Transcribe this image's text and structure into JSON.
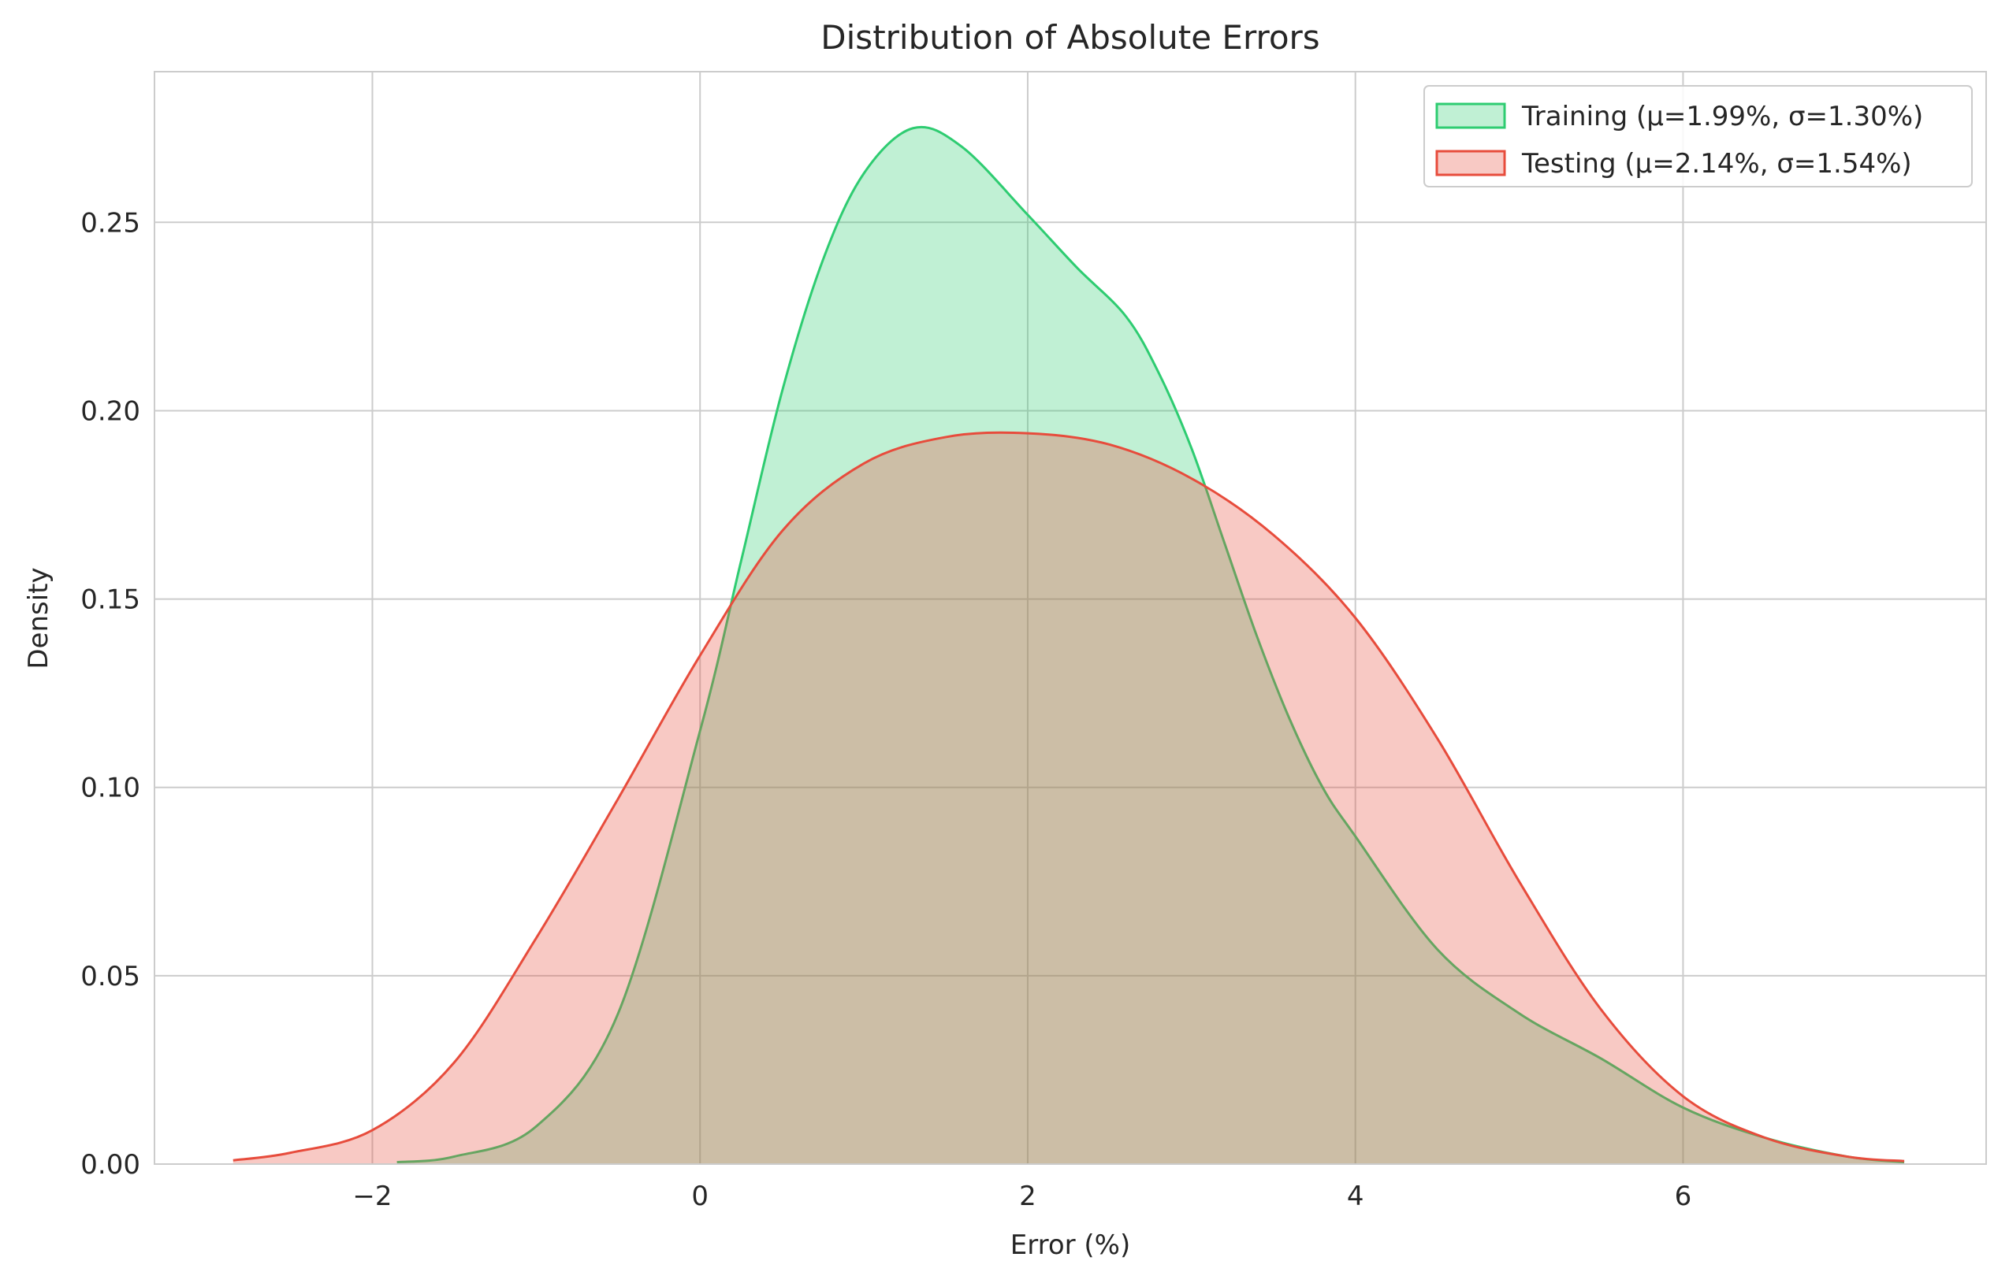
{
  "chart_data": {
    "type": "area",
    "title": "Distribution of Absolute Errors",
    "xlabel": "Error (%)",
    "ylabel": "Density",
    "xlim": [
      -3.33,
      7.85
    ],
    "ylim": [
      0,
      0.29
    ],
    "xticks": [
      -2,
      0,
      2,
      4,
      6
    ],
    "xtick_labels": [
      "−2",
      "0",
      "2",
      "4",
      "6"
    ],
    "yticks": [
      0,
      0.05,
      0.1,
      0.15,
      0.2,
      0.25
    ],
    "ytick_labels": [
      "0.00",
      "0.05",
      "0.10",
      "0.15",
      "0.20",
      "0.25"
    ],
    "grid": true,
    "legend_position": "top-right",
    "series": [
      {
        "name": "Training (μ=1.99%, σ=1.30%)",
        "line_color": "#2ecc71",
        "fill_color": "#2ecc71",
        "fill_opacity": 0.3,
        "x": [
          -1.85,
          -1.5,
          -1.0,
          -0.5,
          0.0,
          0.25,
          0.5,
          0.75,
          1.0,
          1.3,
          1.6,
          2.0,
          2.3,
          2.6,
          2.8,
          3.0,
          3.2,
          3.4,
          3.6,
          3.8,
          4.0,
          4.5,
          5.0,
          5.5,
          6.0,
          6.5,
          7.0,
          7.35
        ],
        "y": [
          0.0005,
          0.002,
          0.01,
          0.04,
          0.115,
          0.16,
          0.205,
          0.24,
          0.263,
          0.275,
          0.27,
          0.252,
          0.238,
          0.225,
          0.21,
          0.19,
          0.165,
          0.14,
          0.118,
          0.1,
          0.087,
          0.057,
          0.04,
          0.028,
          0.015,
          0.007,
          0.002,
          0.0005
        ]
      },
      {
        "name": "Testing (μ=2.14%, σ=1.54%)",
        "line_color": "#e74c3c",
        "fill_color": "#e74c3c",
        "fill_opacity": 0.3,
        "x": [
          -2.85,
          -2.5,
          -2.0,
          -1.5,
          -1.0,
          -0.5,
          0.0,
          0.5,
          1.0,
          1.5,
          2.0,
          2.5,
          3.0,
          3.5,
          4.0,
          4.5,
          5.0,
          5.5,
          6.0,
          6.5,
          7.0,
          7.35
        ],
        "y": [
          0.001,
          0.003,
          0.009,
          0.027,
          0.06,
          0.097,
          0.135,
          0.168,
          0.186,
          0.193,
          0.194,
          0.191,
          0.182,
          0.167,
          0.145,
          0.113,
          0.075,
          0.041,
          0.018,
          0.007,
          0.002,
          0.0008
        ]
      }
    ]
  }
}
